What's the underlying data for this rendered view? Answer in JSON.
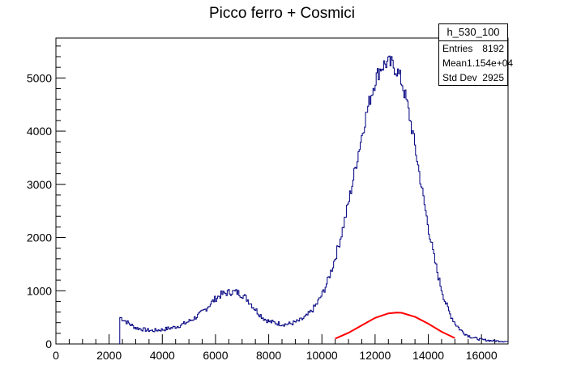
{
  "title": "Picco ferro + Cosmici",
  "stats_box": {
    "name": "h_530_100",
    "rows": [
      {
        "label": "Entries",
        "value": "8192"
      },
      {
        "label": "Mean",
        "value": "1.154e+04"
      },
      {
        "label": "Std Dev",
        "value": "2925"
      }
    ]
  },
  "chart_data": {
    "type": "histogram",
    "title": "Picco ferro + Cosmici",
    "xlabel": "",
    "ylabel": "",
    "xlim": [
      0,
      17000
    ],
    "ylim": [
      0,
      5750
    ],
    "x_ticks": [
      0,
      2000,
      4000,
      6000,
      8000,
      10000,
      12000,
      14000,
      16000
    ],
    "y_ticks": [
      0,
      1000,
      2000,
      3000,
      4000,
      5000
    ],
    "grid": false,
    "series": [
      {
        "style": "histogram",
        "color": "#000080",
        "x": [
          2400,
          2600,
          2800,
          3000,
          3200,
          3400,
          3600,
          3800,
          4000,
          4200,
          4400,
          4600,
          4800,
          5000,
          5200,
          5400,
          5600,
          5800,
          6000,
          6200,
          6400,
          6600,
          6800,
          7000,
          7200,
          7400,
          7600,
          7800,
          8000,
          8200,
          8400,
          8600,
          8800,
          9000,
          9200,
          9400,
          9600,
          9800,
          10000,
          10200,
          10400,
          10600,
          10800,
          11000,
          11200,
          11400,
          11600,
          11800,
          12000,
          12200,
          12400,
          12600,
          12800,
          13000,
          13200,
          13400,
          13600,
          13800,
          14000,
          14200,
          14400,
          14600,
          14800,
          15000,
          15200,
          15400,
          15600,
          15800,
          16000,
          16200,
          16400,
          16600,
          16800,
          17000
        ],
        "y": [
          500,
          430,
          360,
          300,
          280,
          260,
          250,
          260,
          270,
          290,
          310,
          340,
          380,
          430,
          490,
          560,
          650,
          760,
          860,
          930,
          960,
          980,
          970,
          920,
          830,
          700,
          580,
          480,
          420,
          400,
          380,
          370,
          380,
          410,
          450,
          520,
          620,
          760,
          940,
          1180,
          1480,
          1830,
          2240,
          2700,
          3200,
          3720,
          4200,
          4620,
          4980,
          5200,
          5280,
          5260,
          5150,
          4900,
          4480,
          3950,
          3350,
          2730,
          2150,
          1620,
          1180,
          820,
          560,
          380,
          260,
          180,
          130,
          100,
          80,
          70,
          60,
          55,
          50,
          45
        ]
      },
      {
        "style": "curve",
        "color": "#ff0000",
        "x": [
          10500,
          11000,
          11500,
          12000,
          12500,
          12800,
          13000,
          13500,
          14000,
          14500,
          15000
        ],
        "y": [
          100,
          210,
          350,
          490,
          575,
          590,
          585,
          510,
          380,
          230,
          110
        ]
      }
    ]
  }
}
